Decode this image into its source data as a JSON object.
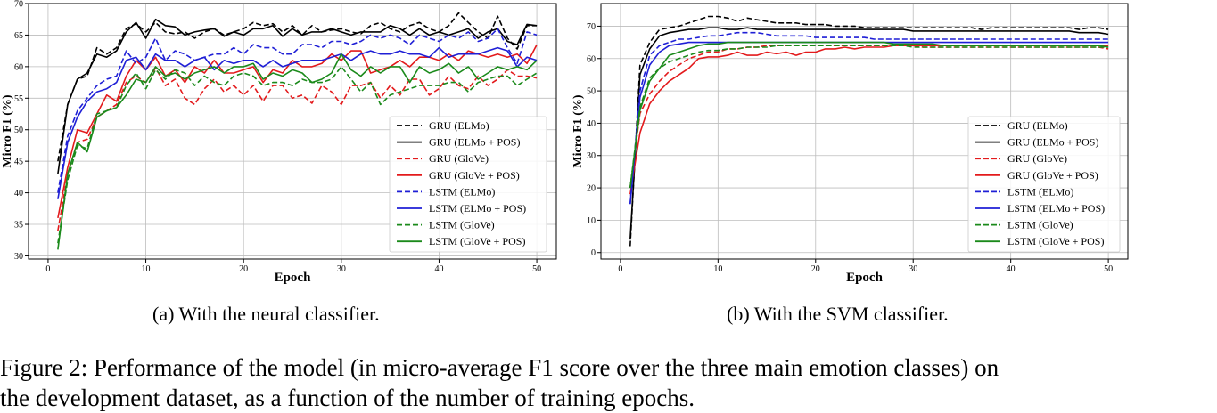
{
  "figure_caption": {
    "line1": "Figure 2: Performance of the model (in micro-average F1 score over the three main emotion classes) on",
    "line2": "the development dataset, as a function of the number of training epochs."
  },
  "legend_labels": [
    "GRU (ELMo)",
    "GRU (ELMo + POS)",
    "GRU (GloVe)",
    "GRU (GloVe + POS)",
    "LSTM (ELMo)",
    "LSTM (ELMo + POS)",
    "LSTM (GloVe)",
    "LSTM (GloVe + POS)"
  ],
  "colors": {
    "black": "#000000",
    "red": "#e31a1c",
    "blue": "#1f1fd6",
    "green": "#1b8a1b"
  },
  "chart_data": [
    {
      "type": "line",
      "caption": "(a) With the neural classifier.",
      "xlabel": "Epoch",
      "ylabel": "Micro F1 (%)",
      "xlim": [
        -2,
        52
      ],
      "ylim": [
        29.5,
        70
      ],
      "xticks": [
        0,
        10,
        20,
        30,
        40,
        50
      ],
      "yticks": [
        30,
        35,
        40,
        45,
        50,
        55,
        60,
        65,
        70
      ],
      "grid": true,
      "legend_placement": "lower-right",
      "x": [
        1,
        2,
        3,
        4,
        5,
        6,
        7,
        8,
        9,
        10,
        11,
        12,
        13,
        14,
        15,
        16,
        17,
        18,
        19,
        20,
        21,
        22,
        23,
        24,
        25,
        26,
        27,
        28,
        29,
        30,
        31,
        32,
        33,
        34,
        35,
        36,
        37,
        38,
        39,
        40,
        41,
        42,
        43,
        44,
        45,
        46,
        47,
        48,
        49,
        50
      ],
      "series": [
        {
          "name": "GRU (ELMo)",
          "color": "black",
          "dash": "dashed",
          "values": [
            45,
            54,
            58,
            58.5,
            63,
            62,
            63,
            66,
            66.8,
            65.5,
            67,
            65.5,
            65.2,
            65.5,
            64.5,
            65.5,
            66,
            65,
            65.5,
            66,
            67,
            66.5,
            66.8,
            65.5,
            66.5,
            65,
            66.5,
            65.5,
            65.8,
            66,
            65.5,
            65.2,
            66.5,
            67,
            66,
            65.5,
            66.5,
            67,
            66,
            65.5,
            66.5,
            68.5,
            67,
            65.5,
            64.5,
            68,
            64.5,
            62.8,
            66.5,
            66.5
          ]
        },
        {
          "name": "GRU (ELMo + POS)",
          "color": "black",
          "dash": "solid",
          "values": [
            43,
            54,
            58,
            59,
            62,
            61.5,
            62.5,
            65.5,
            67,
            64.5,
            67.5,
            66.5,
            66.3,
            65,
            65.5,
            65.8,
            66,
            64.8,
            65.5,
            65,
            66,
            66,
            66.5,
            64.8,
            66,
            65,
            65.5,
            65.5,
            66,
            65.5,
            65,
            65.5,
            65.5,
            65.5,
            66.5,
            66,
            65,
            66,
            65,
            65.5,
            65,
            65.5,
            66,
            64.5,
            65.5,
            66,
            64,
            63.5,
            66.7,
            66.5
          ]
        },
        {
          "name": "GRU (GloVe)",
          "color": "red",
          "dash": "dashed",
          "values": [
            34,
            43,
            48,
            48.5,
            52,
            53,
            54,
            57.5,
            58.5,
            57.5,
            59.8,
            57,
            58,
            55,
            54,
            56.5,
            58,
            56,
            57,
            55.5,
            57,
            54.5,
            57,
            57,
            55,
            55.5,
            54.2,
            57,
            56,
            54,
            57,
            57,
            57.5,
            55,
            57,
            55.5,
            58,
            58,
            55.5,
            56.5,
            58.5,
            57,
            56.5,
            58.5,
            57,
            58,
            59.5,
            58.5,
            58.5,
            58.2
          ]
        },
        {
          "name": "GRU (GloVe + POS)",
          "color": "red",
          "dash": "solid",
          "values": [
            36,
            44,
            50,
            49.5,
            52.5,
            55.5,
            54.5,
            58.5,
            61,
            59.5,
            61.5,
            58.5,
            59.5,
            57.5,
            60,
            59,
            61,
            59,
            59,
            59.5,
            60,
            57.5,
            59.5,
            59,
            61,
            60,
            60,
            60.5,
            62,
            61,
            62.5,
            62.5,
            59,
            59.5,
            60,
            61,
            60,
            61.5,
            61.5,
            61,
            62,
            61,
            62.5,
            62,
            61.5,
            62,
            61.5,
            62,
            60.5,
            63.5
          ]
        },
        {
          "name": "LSTM (ELMo)",
          "color": "blue",
          "dash": "dashed",
          "values": [
            40,
            49,
            53,
            55,
            57,
            58,
            58.5,
            62.5,
            60.5,
            61.5,
            64.5,
            61,
            62.5,
            62,
            61,
            61.5,
            62,
            62,
            63,
            62,
            63.5,
            63,
            63,
            62,
            62,
            63.5,
            63.5,
            63,
            64,
            64,
            63.5,
            64,
            65,
            64.5,
            65,
            64.5,
            63.5,
            65,
            64.5,
            64,
            65,
            64.5,
            65.5,
            64,
            64.5,
            66,
            63,
            60.5,
            65.5,
            65
          ]
        },
        {
          "name": "LSTM (ELMo + POS)",
          "color": "blue",
          "dash": "solid",
          "values": [
            39,
            48,
            52,
            54.5,
            56,
            56.5,
            57.5,
            61,
            61.5,
            59.5,
            62,
            61,
            61,
            60,
            61,
            61.5,
            59.5,
            61,
            60.5,
            61,
            61,
            60,
            61,
            60,
            60.5,
            61,
            61,
            61,
            61.5,
            62,
            61,
            62,
            62.5,
            62,
            62,
            62.5,
            62,
            62,
            61.5,
            63,
            61.5,
            62,
            62,
            62,
            62.5,
            63,
            62.5,
            60,
            61.5,
            61
          ]
        },
        {
          "name": "LSTM (GloVe)",
          "color": "green",
          "dash": "dashed",
          "values": [
            32,
            42,
            47.5,
            47,
            52.5,
            53,
            53.5,
            57,
            59,
            56.5,
            59.5,
            58,
            59.5,
            59,
            57,
            58.5,
            57.5,
            57,
            58.5,
            59,
            58.5,
            57,
            57.5,
            57.5,
            57,
            58,
            57.5,
            57.5,
            58,
            60,
            58,
            56,
            57.5,
            54,
            55.5,
            56,
            56.5,
            57,
            57,
            57,
            57.5,
            57.5,
            56,
            57.5,
            58,
            58.5,
            58.5,
            57,
            58,
            59
          ]
        },
        {
          "name": "LSTM (GloVe + POS)",
          "color": "green",
          "dash": "solid",
          "values": [
            31,
            43,
            48,
            46.5,
            52,
            53,
            53.5,
            55.5,
            58,
            57.5,
            60,
            58.5,
            59,
            58,
            59,
            59.5,
            60,
            59,
            60,
            60,
            60.5,
            58,
            59,
            58.5,
            59.5,
            59,
            57.5,
            58,
            59,
            62,
            59.5,
            58.5,
            60,
            59,
            60,
            60,
            57.5,
            60,
            59,
            59.5,
            60.5,
            59,
            60,
            58,
            59,
            60,
            59.5,
            60,
            59.5,
            61
          ]
        }
      ]
    },
    {
      "type": "line",
      "caption": "(b) With the SVM classifier.",
      "xlabel": "Epoch",
      "ylabel": "Micro F1 (%)",
      "xlim": [
        -2,
        52
      ],
      "ylim": [
        -2,
        77
      ],
      "xticks": [
        0,
        10,
        20,
        30,
        40,
        50
      ],
      "yticks": [
        0,
        10,
        20,
        30,
        40,
        50,
        60,
        70
      ],
      "grid": true,
      "legend_placement": "lower-right",
      "x": [
        1,
        2,
        3,
        4,
        5,
        6,
        7,
        8,
        9,
        10,
        11,
        12,
        13,
        14,
        15,
        16,
        17,
        18,
        19,
        20,
        21,
        22,
        23,
        24,
        25,
        26,
        27,
        28,
        29,
        30,
        31,
        32,
        33,
        34,
        35,
        36,
        37,
        38,
        39,
        40,
        41,
        42,
        43,
        44,
        45,
        46,
        47,
        48,
        49,
        50
      ],
      "series": [
        {
          "name": "GRU (ELMo)",
          "color": "black",
          "dash": "dashed",
          "values": [
            2,
            58,
            65,
            69,
            69.5,
            70,
            71,
            72,
            73,
            73,
            72.5,
            71.5,
            72.5,
            72,
            71.5,
            71,
            71,
            71,
            70.5,
            70.5,
            70.5,
            70,
            70,
            70,
            69.5,
            69.5,
            69.5,
            69.5,
            69.5,
            69.5,
            69.5,
            69.5,
            69.5,
            69.5,
            69.5,
            69.5,
            69,
            69.5,
            69.5,
            69.5,
            69.5,
            69.5,
            69.5,
            69.5,
            69.5,
            69.5,
            69,
            69.5,
            69.5,
            69
          ]
        },
        {
          "name": "GRU (ELMo + POS)",
          "color": "black",
          "dash": "solid",
          "values": [
            4,
            55,
            63,
            67,
            68,
            68.5,
            69,
            69,
            69.5,
            69.5,
            69,
            69,
            69.5,
            69,
            69,
            69,
            69,
            69,
            69,
            69,
            69,
            69,
            69,
            69,
            69,
            69,
            69,
            69,
            69,
            68.5,
            68.5,
            68.5,
            68.5,
            68.5,
            68.5,
            68.5,
            68.5,
            68.5,
            68.5,
            68.5,
            68.5,
            68.5,
            68.5,
            68.5,
            68.5,
            68.5,
            68,
            68,
            68,
            67.5
          ]
        },
        {
          "name": "GRU (GloVe)",
          "color": "red",
          "dash": "dashed",
          "values": [
            20,
            43,
            49,
            53,
            56,
            58,
            60,
            61,
            62,
            62,
            63,
            63,
            63.5,
            63.5,
            64,
            64,
            64,
            64,
            64,
            64,
            64,
            64,
            64,
            64,
            64,
            64,
            64,
            64,
            64,
            64,
            63.5,
            63.5,
            63.5,
            63.5,
            63.5,
            63.5,
            63.5,
            63.5,
            63.5,
            63.5,
            63.5,
            63.5,
            63.5,
            63.5,
            63.5,
            63.5,
            63.5,
            63.5,
            63.5,
            63
          ]
        },
        {
          "name": "GRU (GloVe + POS)",
          "color": "red",
          "dash": "solid",
          "values": [
            18,
            37,
            46,
            50,
            53,
            55,
            57,
            60,
            60.5,
            60.5,
            61,
            62,
            61,
            61,
            62,
            61.5,
            62,
            61,
            62,
            62,
            63,
            63,
            63.5,
            63,
            63.5,
            63.5,
            63.5,
            64,
            64,
            64,
            64,
            64,
            64,
            64,
            64,
            64,
            64,
            64,
            64,
            64,
            64,
            64,
            64,
            64,
            64,
            64,
            64,
            64,
            64,
            64
          ]
        },
        {
          "name": "LSTM (ELMo)",
          "color": "blue",
          "dash": "dashed",
          "values": [
            15,
            50,
            61,
            64,
            65,
            66,
            66,
            66.5,
            67,
            67,
            67.5,
            68,
            68,
            68,
            67.5,
            67,
            67,
            67,
            67,
            66.5,
            66.5,
            66.5,
            66.5,
            66.5,
            66.5,
            66,
            66,
            66,
            66,
            66,
            66,
            66,
            66,
            66,
            66,
            66,
            66,
            66,
            66,
            66,
            66,
            66,
            66,
            66,
            66,
            66,
            66,
            66,
            66,
            66
          ]
        },
        {
          "name": "LSTM (ELMo + POS)",
          "color": "blue",
          "dash": "solid",
          "values": [
            15,
            48,
            58,
            62,
            64,
            64.5,
            65,
            65,
            65,
            65,
            65,
            65,
            65,
            65,
            65,
            65,
            65,
            65,
            65,
            65,
            65,
            65,
            65,
            65,
            65,
            65,
            65,
            65,
            65,
            65,
            65,
            65,
            65,
            65,
            65,
            65,
            65,
            65,
            65,
            65,
            65,
            65,
            65,
            65,
            65,
            65,
            65,
            65,
            65,
            65
          ]
        },
        {
          "name": "LSTM (GloVe)",
          "color": "green",
          "dash": "dashed",
          "values": [
            20,
            45,
            54,
            57,
            59,
            60,
            61,
            62,
            62.5,
            62.5,
            63,
            63,
            63.5,
            63.5,
            63.5,
            64,
            64,
            64,
            64,
            64,
            64,
            64,
            64,
            64,
            64,
            64,
            64,
            64,
            64,
            63.5,
            63.5,
            63.5,
            63.5,
            63.5,
            63.5,
            63.5,
            63.5,
            63.5,
            63.5,
            63.5,
            63.5,
            63.5,
            63.5,
            63.5,
            63.5,
            63.5,
            63.5,
            63.5,
            63.5,
            63.5
          ]
        },
        {
          "name": "LSTM (GloVe + POS)",
          "color": "green",
          "dash": "solid",
          "values": [
            20,
            44,
            53,
            57,
            61,
            62,
            63,
            64,
            64.5,
            64.5,
            65,
            65,
            65,
            65,
            65,
            65,
            65,
            65,
            65,
            65,
            65,
            65,
            65,
            65,
            65,
            65,
            65,
            64.5,
            64.5,
            64.5,
            64.5,
            64.5,
            64,
            64,
            64,
            64,
            64,
            64,
            64,
            64,
            64,
            64,
            64,
            64,
            64,
            64,
            64,
            64,
            64,
            63.5
          ]
        }
      ]
    }
  ]
}
